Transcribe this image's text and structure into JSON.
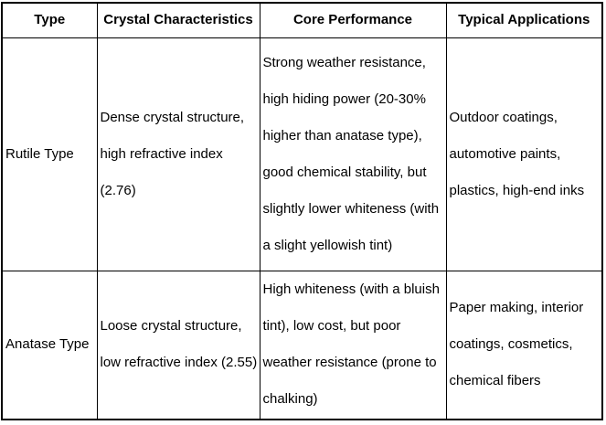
{
  "table": {
    "headers": [
      "Type",
      "Crystal Characteristics",
      "Core Performance",
      "Typical Applications"
    ],
    "rows": [
      {
        "type": "Rutile Type",
        "crystal": "Dense crystal structure, high refractive index (2.76)",
        "performance": "Strong weather resistance, high hiding power (20-30% higher than anatase type), good chemical stability, but slightly lower whiteness (with a slight yellowish tint)",
        "applications": "Outdoor coatings, automotive paints, plastics, high-end inks"
      },
      {
        "type": "Anatase Type",
        "crystal": "Loose crystal structure, low refractive index (2.55)",
        "performance": "High whiteness (with a bluish tint), low cost, but poor weather resistance (prone to chalking)",
        "applications": "Paper making, interior coatings, cosmetics, chemical fibers"
      }
    ]
  },
  "colors": {
    "border": "#000000",
    "text": "#000000",
    "background": "#ffffff"
  }
}
